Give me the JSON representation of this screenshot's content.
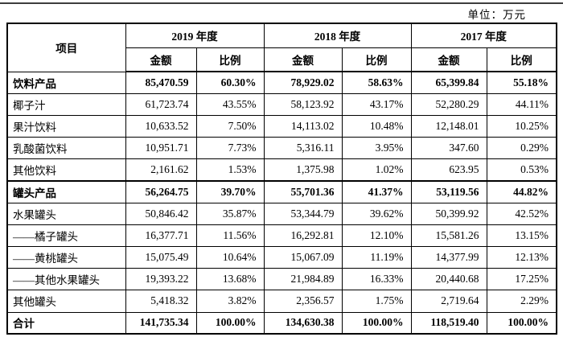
{
  "page": {
    "unit_label": "单位：万元"
  },
  "table": {
    "item_header": "项目",
    "year_groups": [
      {
        "label": "2019 年度"
      },
      {
        "label": "2018 年度"
      },
      {
        "label": "2017 年度"
      }
    ],
    "sub_headers": {
      "amount": "金额",
      "ratio": "比例"
    },
    "rows": [
      {
        "label": "饮料产品",
        "bold": true,
        "thick_top": false,
        "cells": [
          "85,470.59",
          "60.30%",
          "78,929.02",
          "58.63%",
          "65,399.84",
          "55.18%"
        ]
      },
      {
        "label": "椰子汁",
        "bold": false,
        "thick_top": false,
        "cells": [
          "61,723.74",
          "43.55%",
          "58,123.92",
          "43.17%",
          "52,280.29",
          "44.11%"
        ]
      },
      {
        "label": "果汁饮料",
        "bold": false,
        "thick_top": false,
        "cells": [
          "10,633.52",
          "7.50%",
          "14,113.02",
          "10.48%",
          "12,148.01",
          "10.25%"
        ]
      },
      {
        "label": "乳酸菌饮料",
        "bold": false,
        "thick_top": false,
        "cells": [
          "10,951.71",
          "7.73%",
          "5,316.11",
          "3.95%",
          "347.60",
          "0.29%"
        ]
      },
      {
        "label": "其他饮料",
        "bold": false,
        "thick_top": false,
        "cells": [
          "2,161.62",
          "1.53%",
          "1,375.98",
          "1.02%",
          "623.95",
          "0.53%"
        ]
      },
      {
        "label": "罐头产品",
        "bold": true,
        "thick_top": true,
        "cells": [
          "56,264.75",
          "39.70%",
          "55,701.36",
          "41.37%",
          "53,119.56",
          "44.82%"
        ]
      },
      {
        "label": "水果罐头",
        "bold": false,
        "thick_top": false,
        "cells": [
          "50,846.42",
          "35.87%",
          "53,344.79",
          "39.62%",
          "50,399.92",
          "42.52%"
        ]
      },
      {
        "label": "——橘子罐头",
        "bold": false,
        "thick_top": false,
        "cells": [
          "16,377.71",
          "11.56%",
          "16,292.81",
          "12.10%",
          "15,581.26",
          "13.15%"
        ]
      },
      {
        "label": "——黄桃罐头",
        "bold": false,
        "thick_top": false,
        "cells": [
          "15,075.49",
          "10.64%",
          "15,067.09",
          "11.19%",
          "14,377.99",
          "12.13%"
        ]
      },
      {
        "label": "——其他水果罐头",
        "bold": false,
        "thick_top": false,
        "cells": [
          "19,393.22",
          "13.68%",
          "21,984.89",
          "16.33%",
          "20,440.68",
          "17.25%"
        ]
      },
      {
        "label": "其他罐头",
        "bold": false,
        "thick_top": false,
        "cells": [
          "5,418.32",
          "3.82%",
          "2,356.57",
          "1.75%",
          "2,719.64",
          "2.29%"
        ]
      },
      {
        "label": "合计",
        "bold": true,
        "thick_top": false,
        "cells": [
          "141,735.34",
          "100.00%",
          "134,630.38",
          "100.00%",
          "118,519.40",
          "100.00%"
        ]
      }
    ]
  }
}
